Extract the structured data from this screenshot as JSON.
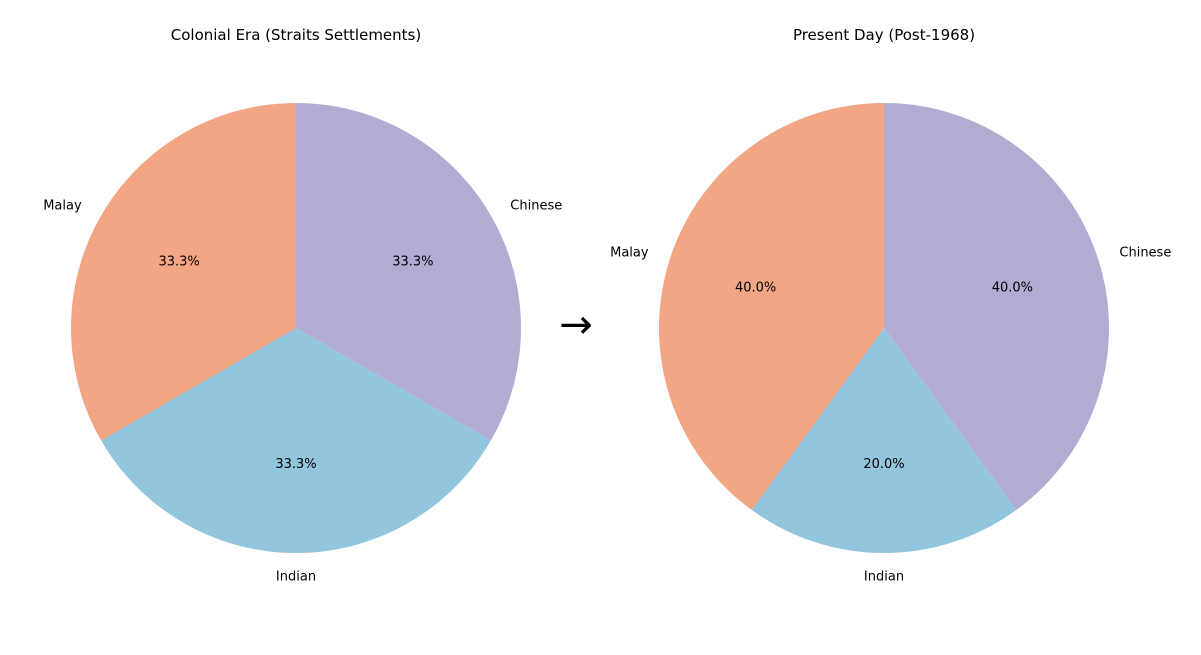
{
  "arrow": "→",
  "colors": {
    "Malay": "#f3a683",
    "Indian": "#92c5de",
    "Chinese": "#b2acd2"
  },
  "chart_data": [
    {
      "type": "pie",
      "title": "Colonial Era (Straits Settlements)",
      "labels": [
        "Chinese",
        "Indian",
        "Malay"
      ],
      "values": [
        33.3,
        33.3,
        33.3
      ],
      "autopct": [
        "33.3%",
        "33.3%",
        "33.3%"
      ],
      "start_angle": 90,
      "direction": "clockwise"
    },
    {
      "type": "pie",
      "title": "Present Day (Post-1968)",
      "labels": [
        "Chinese",
        "Indian",
        "Malay"
      ],
      "values": [
        40.0,
        20.0,
        40.0
      ],
      "autopct": [
        "40.0%",
        "20.0%",
        "40.0%"
      ],
      "start_angle": 90,
      "direction": "clockwise"
    }
  ]
}
